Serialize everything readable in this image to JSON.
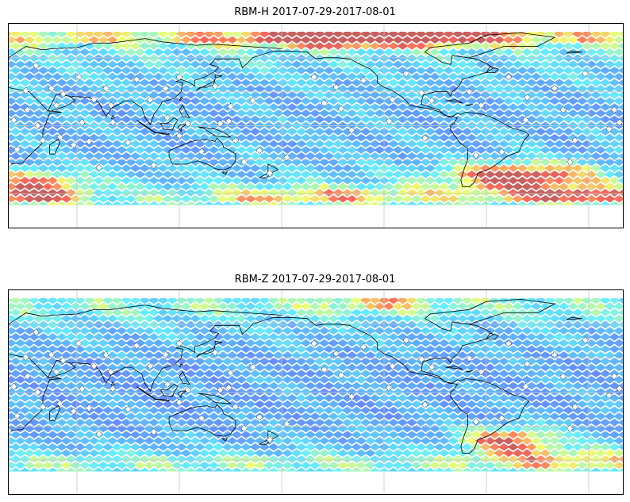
{
  "figure": {
    "panels": [
      {
        "title": "RBM-H 2017-07-29-2017-08-01",
        "field": "rbm-h",
        "colormap": "jet-alpha",
        "grid": true,
        "coastlines": true
      },
      {
        "title": "RBM-Z 2017-07-29-2017-08-01",
        "field": "rbm-z",
        "colormap": "jet-alpha",
        "grid": true,
        "coastlines": true
      }
    ]
  },
  "colors": {
    "low": "#6b6bff",
    "mid_low": "#5fb4ff",
    "mid": "#66eeff",
    "mid_high": "#f0ff70",
    "high": "#ff6a5a",
    "saturated": "#c86060",
    "coastline": "#000000",
    "grid": "#c8c8c8",
    "station_marker": "#ffffff"
  },
  "map": {
    "projection": "plate-carree",
    "longitude_range": [
      20,
      380
    ],
    "latitude_range": [
      -90,
      90
    ],
    "data_latitude_range": [
      -70,
      83
    ],
    "meridians": [
      60,
      120,
      180,
      240,
      300,
      360
    ],
    "parallels": [
      -60,
      -30,
      0,
      30,
      60
    ]
  },
  "stations": [
    [
      20,
      -34
    ],
    [
      23,
      5
    ],
    [
      25,
      -21
    ],
    [
      30,
      31
    ],
    [
      31,
      14
    ],
    [
      36,
      53
    ],
    [
      37,
      0
    ],
    [
      40,
      -13
    ],
    [
      45,
      33
    ],
    [
      48,
      18
    ],
    [
      50,
      -10
    ],
    [
      52,
      28
    ],
    [
      58,
      -17
    ],
    [
      61,
      43
    ],
    [
      63,
      3
    ],
    [
      67,
      -14
    ],
    [
      70,
      23
    ],
    [
      73,
      -37
    ],
    [
      77,
      33
    ],
    [
      80,
      18
    ],
    [
      81,
      3
    ],
    [
      90,
      -15
    ],
    [
      95,
      41
    ],
    [
      103,
      23
    ],
    [
      105,
      -35
    ],
    [
      112,
      33
    ],
    [
      113,
      7
    ],
    [
      120,
      43
    ],
    [
      120,
      -9
    ],
    [
      125,
      2
    ],
    [
      133,
      -23
    ],
    [
      141,
      35
    ],
    [
      144,
      2
    ],
    [
      149,
      4
    ],
    [
      150,
      17
    ],
    [
      153,
      -13
    ],
    [
      158,
      -32
    ],
    [
      163,
      22
    ],
    [
      167,
      -22
    ],
    [
      173,
      -42
    ],
    [
      183,
      -28
    ],
    [
      199,
      43
    ],
    [
      205,
      20
    ],
    [
      212,
      34
    ],
    [
      215,
      15
    ],
    [
      221,
      -4
    ],
    [
      228,
      40
    ],
    [
      243,
      4
    ],
    [
      245,
      23
    ],
    [
      253,
      46
    ],
    [
      262,
      29
    ],
    [
      264,
      -11
    ],
    [
      268,
      22
    ],
    [
      290,
      30
    ],
    [
      294,
      -26
    ],
    [
      297,
      18
    ],
    [
      309,
      -23
    ],
    [
      313,
      43
    ],
    [
      323,
      5
    ],
    [
      324,
      25
    ],
    [
      340,
      33
    ],
    [
      345,
      14
    ],
    [
      349,
      -32
    ],
    [
      352,
      -13
    ],
    [
      358,
      46
    ],
    [
      372,
      -3
    ],
    [
      375,
      14
    ],
    [
      378,
      3
    ]
  ]
}
